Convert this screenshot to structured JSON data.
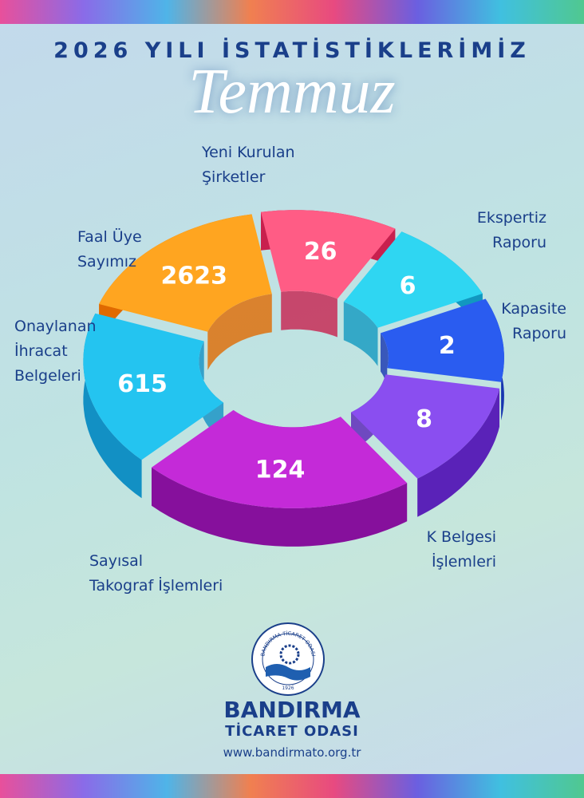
{
  "header": {
    "title": "2026 YILI İSTATİSTİKLERİMİZ",
    "month": "Temmuz"
  },
  "segments": [
    {
      "label": [
        "Yeni Kurulan",
        "Şirketler"
      ],
      "value": 26
    },
    {
      "label": [
        "Ekspertiz",
        "Raporu"
      ],
      "value": 6
    },
    {
      "label": [
        "Kapasite",
        "Raporu"
      ],
      "value": 2
    },
    {
      "label": [
        "K Belgesi",
        "İşlemleri"
      ],
      "value": 8
    },
    {
      "label": [
        "Sayısal",
        "Takograf İşlemleri"
      ],
      "value": 124
    },
    {
      "label": [
        "Onaylanan",
        "İhracat",
        "Belgeleri"
      ],
      "value": 615
    },
    {
      "label": [
        "Faal Üye",
        "Sayımız"
      ],
      "value": 2623
    }
  ],
  "footer": {
    "logo_ring": "BANDIRMA TİCARET ODASI",
    "logo_year": "1926",
    "name": "BANDIRMA",
    "subname": "TİCARET ODASI",
    "website": "www.bandirmato.org.tr"
  }
}
